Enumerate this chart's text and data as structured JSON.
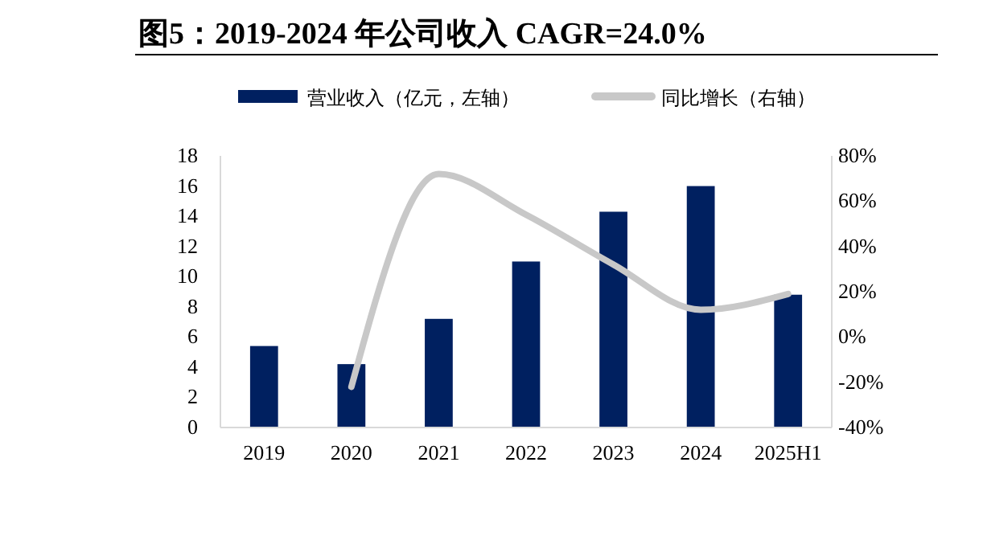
{
  "chart_data": {
    "type": "bar",
    "title": "图5：2019-2024 年公司收入 CAGR=24.0%",
    "categories": [
      "2019",
      "2020",
      "2021",
      "2022",
      "2023",
      "2024",
      "2025H1"
    ],
    "series": [
      {
        "name": "营业收入（亿元，左轴）",
        "color": "#002060",
        "values": [
          5.4,
          4.2,
          7.2,
          11.0,
          14.3,
          16.0,
          8.8
        ]
      },
      {
        "name": "同比增长（右轴）",
        "type": "line",
        "axis": "y2",
        "color": "#c8c8c8",
        "values": [
          null,
          -22,
          72,
          54,
          32,
          12,
          19
        ]
      }
    ],
    "ylim": [
      0,
      18
    ],
    "yticks": [
      0,
      2,
      4,
      6,
      8,
      10,
      12,
      14,
      16,
      18
    ],
    "y2lim": [
      -40,
      80
    ],
    "y2ticks": [
      {
        "value": -40,
        "label": "-40%"
      },
      {
        "value": -20,
        "label": "-20%"
      },
      {
        "value": 0,
        "label": "0%"
      },
      {
        "value": 20,
        "label": "20%"
      },
      {
        "value": 40,
        "label": "40%"
      },
      {
        "value": 60,
        "label": "60%"
      },
      {
        "value": 80,
        "label": "80%"
      }
    ],
    "grid": false,
    "legend": "top",
    "marker": "none",
    "line_style": "solid"
  }
}
